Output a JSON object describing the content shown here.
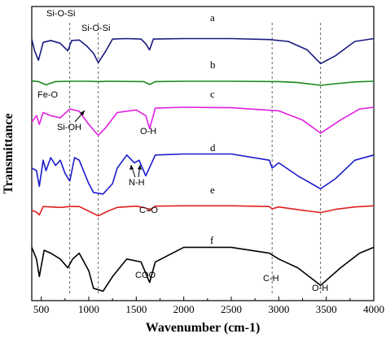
{
  "chart_data": {
    "type": "line",
    "xlabel": "Wavenumber (cm-1)",
    "ylabel": "Transmittance",
    "xlim": [
      400,
      4000
    ],
    "x_ticks": [
      500,
      1000,
      1500,
      2000,
      2500,
      3000,
      3500,
      4000
    ],
    "y_ticks_shown": false,
    "grid": false,
    "legend": "none",
    "reference_lines_x": [
      800,
      1100,
      2930,
      3440
    ],
    "series": [
      {
        "name": "a",
        "color": "#1a1a80",
        "points": [
          [
            400,
            0.55
          ],
          [
            430,
            0.3
          ],
          [
            470,
            0.1
          ],
          [
            520,
            0.48
          ],
          [
            600,
            0.52
          ],
          [
            700,
            0.46
          ],
          [
            780,
            0.3
          ],
          [
            820,
            0.52
          ],
          [
            900,
            0.53
          ],
          [
            980,
            0.4
          ],
          [
            1050,
            0.25
          ],
          [
            1100,
            0.05
          ],
          [
            1180,
            0.3
          ],
          [
            1250,
            0.55
          ],
          [
            1400,
            0.56
          ],
          [
            1550,
            0.55
          ],
          [
            1600,
            0.45
          ],
          [
            1640,
            0.32
          ],
          [
            1680,
            0.55
          ],
          [
            2000,
            0.56
          ],
          [
            2500,
            0.56
          ],
          [
            2900,
            0.54
          ],
          [
            3100,
            0.5
          ],
          [
            3300,
            0.32
          ],
          [
            3440,
            0.03
          ],
          [
            3600,
            0.2
          ],
          [
            3800,
            0.5
          ],
          [
            4000,
            0.56
          ]
        ]
      },
      {
        "name": "b",
        "color": "#1a8a1a",
        "points": [
          [
            400,
            0.42
          ],
          [
            470,
            0.38
          ],
          [
            550,
            0.18
          ],
          [
            650,
            0.38
          ],
          [
            800,
            0.4
          ],
          [
            1000,
            0.4
          ],
          [
            1100,
            0.38
          ],
          [
            1200,
            0.4
          ],
          [
            1580,
            0.38
          ],
          [
            1640,
            0.2
          ],
          [
            1700,
            0.38
          ],
          [
            2000,
            0.4
          ],
          [
            2500,
            0.4
          ],
          [
            3000,
            0.38
          ],
          [
            3200,
            0.32
          ],
          [
            3440,
            0.15
          ],
          [
            3600,
            0.25
          ],
          [
            3800,
            0.36
          ],
          [
            4000,
            0.4
          ]
        ]
      },
      {
        "name": "c",
        "color": "#e020e0",
        "points": [
          [
            400,
            0.4
          ],
          [
            450,
            0.55
          ],
          [
            480,
            0.35
          ],
          [
            520,
            0.62
          ],
          [
            600,
            0.55
          ],
          [
            700,
            0.5
          ],
          [
            800,
            0.7
          ],
          [
            900,
            0.65
          ],
          [
            1000,
            0.35
          ],
          [
            1100,
            0.1
          ],
          [
            1180,
            0.28
          ],
          [
            1300,
            0.62
          ],
          [
            1500,
            0.68
          ],
          [
            1600,
            0.55
          ],
          [
            1640,
            0.25
          ],
          [
            1700,
            0.72
          ],
          [
            2000,
            0.74
          ],
          [
            2500,
            0.73
          ],
          [
            3000,
            0.66
          ],
          [
            3250,
            0.45
          ],
          [
            3440,
            0.15
          ],
          [
            3650,
            0.45
          ],
          [
            3850,
            0.7
          ],
          [
            4000,
            0.74
          ]
        ]
      },
      {
        "name": "d",
        "color": "#1a1acc",
        "points": [
          [
            400,
            0.55
          ],
          [
            450,
            0.5
          ],
          [
            480,
            0.2
          ],
          [
            520,
            0.7
          ],
          [
            550,
            0.5
          ],
          [
            600,
            0.75
          ],
          [
            650,
            0.6
          ],
          [
            700,
            0.7
          ],
          [
            750,
            0.45
          ],
          [
            800,
            0.3
          ],
          [
            850,
            0.75
          ],
          [
            900,
            0.7
          ],
          [
            1000,
            0.25
          ],
          [
            1050,
            0.08
          ],
          [
            1150,
            0.05
          ],
          [
            1250,
            0.25
          ],
          [
            1300,
            0.55
          ],
          [
            1400,
            0.8
          ],
          [
            1480,
            0.65
          ],
          [
            1530,
            0.7
          ],
          [
            1600,
            0.4
          ],
          [
            1700,
            0.8
          ],
          [
            2000,
            0.82
          ],
          [
            2500,
            0.82
          ],
          [
            2900,
            0.7
          ],
          [
            2930,
            0.55
          ],
          [
            3000,
            0.65
          ],
          [
            3200,
            0.4
          ],
          [
            3440,
            0.15
          ],
          [
            3600,
            0.35
          ],
          [
            3800,
            0.7
          ],
          [
            4000,
            0.8
          ]
        ]
      },
      {
        "name": "e",
        "color": "#e02020",
        "points": [
          [
            400,
            0.4
          ],
          [
            450,
            0.3
          ],
          [
            480,
            0.15
          ],
          [
            520,
            0.6
          ],
          [
            600,
            0.58
          ],
          [
            700,
            0.55
          ],
          [
            800,
            0.6
          ],
          [
            900,
            0.6
          ],
          [
            1000,
            0.35
          ],
          [
            1100,
            0.1
          ],
          [
            1200,
            0.35
          ],
          [
            1300,
            0.55
          ],
          [
            1500,
            0.62
          ],
          [
            1600,
            0.52
          ],
          [
            1640,
            0.4
          ],
          [
            1700,
            0.62
          ],
          [
            2000,
            0.64
          ],
          [
            2500,
            0.64
          ],
          [
            2900,
            0.6
          ],
          [
            2930,
            0.48
          ],
          [
            3000,
            0.58
          ],
          [
            3250,
            0.4
          ],
          [
            3440,
            0.28
          ],
          [
            3600,
            0.45
          ],
          [
            3800,
            0.58
          ],
          [
            4000,
            0.64
          ]
        ]
      },
      {
        "name": "f",
        "color": "#000000",
        "points": [
          [
            400,
            0.8
          ],
          [
            450,
            0.6
          ],
          [
            480,
            0.3
          ],
          [
            530,
            0.75
          ],
          [
            600,
            0.7
          ],
          [
            700,
            0.6
          ],
          [
            780,
            0.45
          ],
          [
            830,
            0.6
          ],
          [
            900,
            0.7
          ],
          [
            1000,
            0.4
          ],
          [
            1050,
            0.1
          ],
          [
            1150,
            0.05
          ],
          [
            1250,
            0.3
          ],
          [
            1400,
            0.6
          ],
          [
            1550,
            0.55
          ],
          [
            1640,
            0.2
          ],
          [
            1700,
            0.55
          ],
          [
            2000,
            0.8
          ],
          [
            2500,
            0.8
          ],
          [
            2900,
            0.7
          ],
          [
            3000,
            0.6
          ],
          [
            3200,
            0.45
          ],
          [
            3440,
            0.15
          ],
          [
            3650,
            0.45
          ],
          [
            3850,
            0.7
          ],
          [
            4000,
            0.8
          ]
        ]
      }
    ],
    "annotations": [
      {
        "text": "Si-O-Si",
        "x": 800
      },
      {
        "text": "Si-O-Si",
        "x": 1100
      },
      {
        "text": "Fe-O",
        "x": 550
      },
      {
        "text": "Si-OH",
        "x": 850
      },
      {
        "text": "O-H",
        "x": 1640
      },
      {
        "text": "N-H",
        "x": 1500
      },
      {
        "text": "C=O",
        "x": 1640
      },
      {
        "text": "COO",
        "x": 1620
      },
      {
        "text": "C-H",
        "x": 2930
      },
      {
        "text": "O-H",
        "x": 3440
      }
    ]
  }
}
